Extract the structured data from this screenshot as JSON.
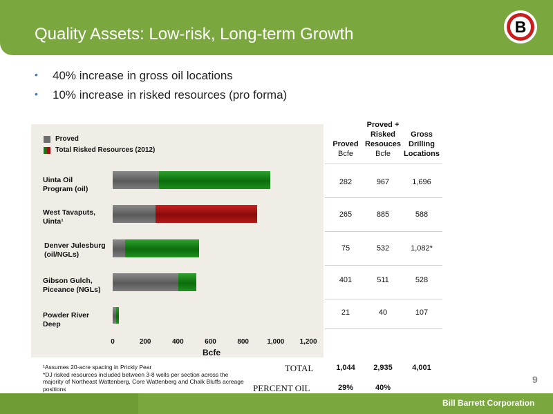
{
  "header": {
    "title": "Quality Assets: Low-risk, Long-term Growth",
    "logo_letter": "B"
  },
  "bullets": [
    "40% increase in gross oil locations",
    "10% increase in risked resources (pro forma)"
  ],
  "legend": {
    "proved": "Proved",
    "total": "Total Risked Resources (2012)"
  },
  "colors": {
    "proved": "#6e6e6e",
    "total_green": "#0f7a0f",
    "total_red": "#a01010",
    "accent": "#7aa83f"
  },
  "chart_data": {
    "type": "bar",
    "orientation": "horizontal",
    "categories": [
      [
        "Uinta Oil",
        "Program (oil)"
      ],
      [
        "West Tavaputs,",
        "Uinta¹"
      ],
      [
        "Denver Julesburg",
        "(oil/NGLs)"
      ],
      [
        "Gibson Gulch,",
        "Piceance (NGLs)"
      ],
      [
        "Powder River",
        "Deep"
      ]
    ],
    "series": [
      {
        "name": "Proved",
        "values": [
          282,
          265,
          75,
          401,
          21
        ]
      },
      {
        "name": "Total Risked Resources (2012)",
        "values": [
          967,
          885,
          532,
          511,
          40
        ]
      }
    ],
    "xlabel": "Bcfe",
    "xlim": [
      0,
      1200
    ],
    "xticks": [
      "0",
      "200",
      "400",
      "600",
      "800",
      "1,000",
      "1,200"
    ]
  },
  "table": {
    "headers": [
      {
        "title": [
          "Proved"
        ],
        "unit": "Bcfe"
      },
      {
        "title": [
          "Proved +",
          "Risked",
          "Resouces"
        ],
        "unit": "Bcfe"
      },
      {
        "title": [
          "Gross",
          "Drilling",
          "Locations"
        ],
        "unit": ""
      }
    ],
    "rows": [
      [
        "282",
        "967",
        "1,696"
      ],
      [
        "265",
        "885",
        "588"
      ],
      [
        "75",
        "532",
        "1,082*"
      ],
      [
        "401",
        "511",
        "528"
      ],
      [
        "21",
        "40",
        "107"
      ]
    ],
    "total": {
      "label": "TOTAL",
      "values": [
        "1,044",
        "2,935",
        "4,001"
      ]
    },
    "percent_oil": {
      "label": "PERCENT OIL",
      "values": [
        "29%",
        "40%"
      ]
    }
  },
  "footnotes": [
    "¹Assumes 20-acre spacing in Prickly Pear",
    "*DJ risked resources included between 3-8 wells per section across the majority of Northeast Wattenberg, Core Wattenberg and Chalk Bluffs acreage positions"
  ],
  "page_number": "9",
  "footer": {
    "company": "Bill Barrett Corporation"
  }
}
